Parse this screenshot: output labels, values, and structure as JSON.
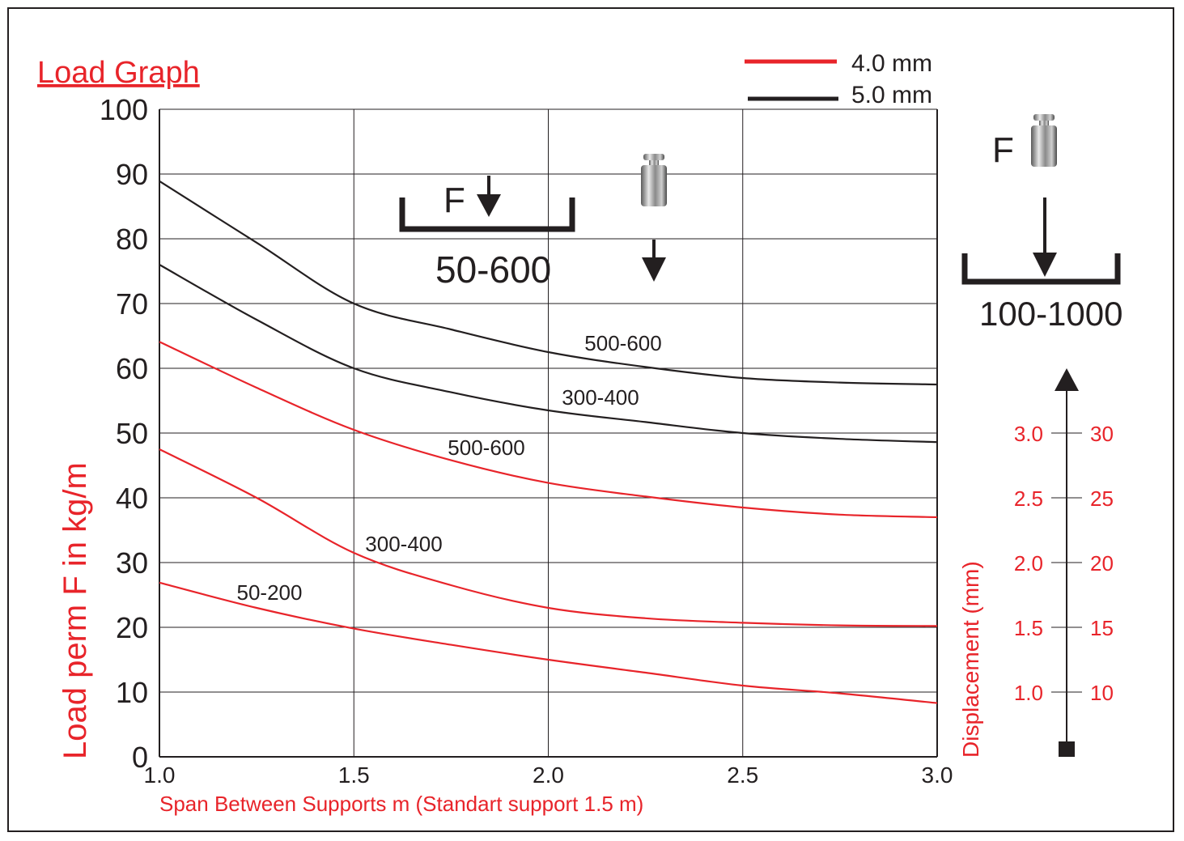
{
  "chart_data": {
    "type": "line",
    "title": "Load Graph",
    "xlabel": "Span Between Supports m (Standart support 1.5 m)",
    "ylabel": "Load perm F in kg/m",
    "xlim": [
      1.0,
      3.0
    ],
    "ylim": [
      0,
      100
    ],
    "x_ticks": [
      "1.0",
      "1.5",
      "2.0",
      "2.5",
      "3.0"
    ],
    "y_ticks": [
      "0",
      "10",
      "20",
      "30",
      "40",
      "50",
      "60",
      "70",
      "80",
      "90",
      "100"
    ],
    "grid": true,
    "legend": {
      "placement": "top-right",
      "entries": [
        {
          "label": "4.0 mm",
          "color": "#e8242a"
        },
        {
          "label": "5.0 mm",
          "color": "#231f20"
        }
      ]
    },
    "x": [
      1.0,
      1.25,
      1.5,
      1.75,
      2.0,
      2.25,
      2.5,
      2.75,
      3.0
    ],
    "series": [
      {
        "name": "500-600",
        "thickness": "5.0 mm",
        "color": "#231f20",
        "values": [
          88.9,
          79.4,
          70,
          66,
          62.5,
          60.2,
          58.5,
          57.8,
          57.5
        ]
      },
      {
        "name": "300-400",
        "thickness": "5.0 mm",
        "color": "#231f20",
        "values": [
          76,
          67.5,
          60,
          56.3,
          53.5,
          51.7,
          50,
          49.1,
          48.6
        ]
      },
      {
        "name": "500-600",
        "thickness": "4.0 mm",
        "color": "#e8242a",
        "values": [
          64.1,
          57,
          50.5,
          45.8,
          42.3,
          40.2,
          38.5,
          37.4,
          37
        ]
      },
      {
        "name": "300-400",
        "thickness": "4.0 mm",
        "color": "#e8242a",
        "values": [
          47.5,
          40,
          31.5,
          26.5,
          23,
          21.4,
          20.7,
          20.3,
          20.2
        ]
      },
      {
        "name": "50-200",
        "thickness": "4.0 mm",
        "color": "#e8242a",
        "values": [
          26.9,
          23,
          19.8,
          17.3,
          15,
          13,
          11,
          9.8,
          8.3
        ]
      }
    ],
    "annotations": {
      "load_diagram_1": {
        "force": "F",
        "range": "50-600"
      },
      "load_diagram_2": {
        "force": "F",
        "range": "100-1000"
      }
    },
    "displacement_scale": {
      "label": "Displacement (mm)",
      "left_ticks": [
        "3.0",
        "2.5",
        "2.0",
        "1.5",
        "1.0"
      ],
      "right_ticks": [
        "30",
        "25",
        "20",
        "15",
        "10"
      ],
      "aligned_load_values": [
        50,
        40,
        30,
        20,
        10
      ]
    }
  },
  "colors": {
    "accent": "#e8242a",
    "ink": "#231f20",
    "grid": "#231f20"
  }
}
